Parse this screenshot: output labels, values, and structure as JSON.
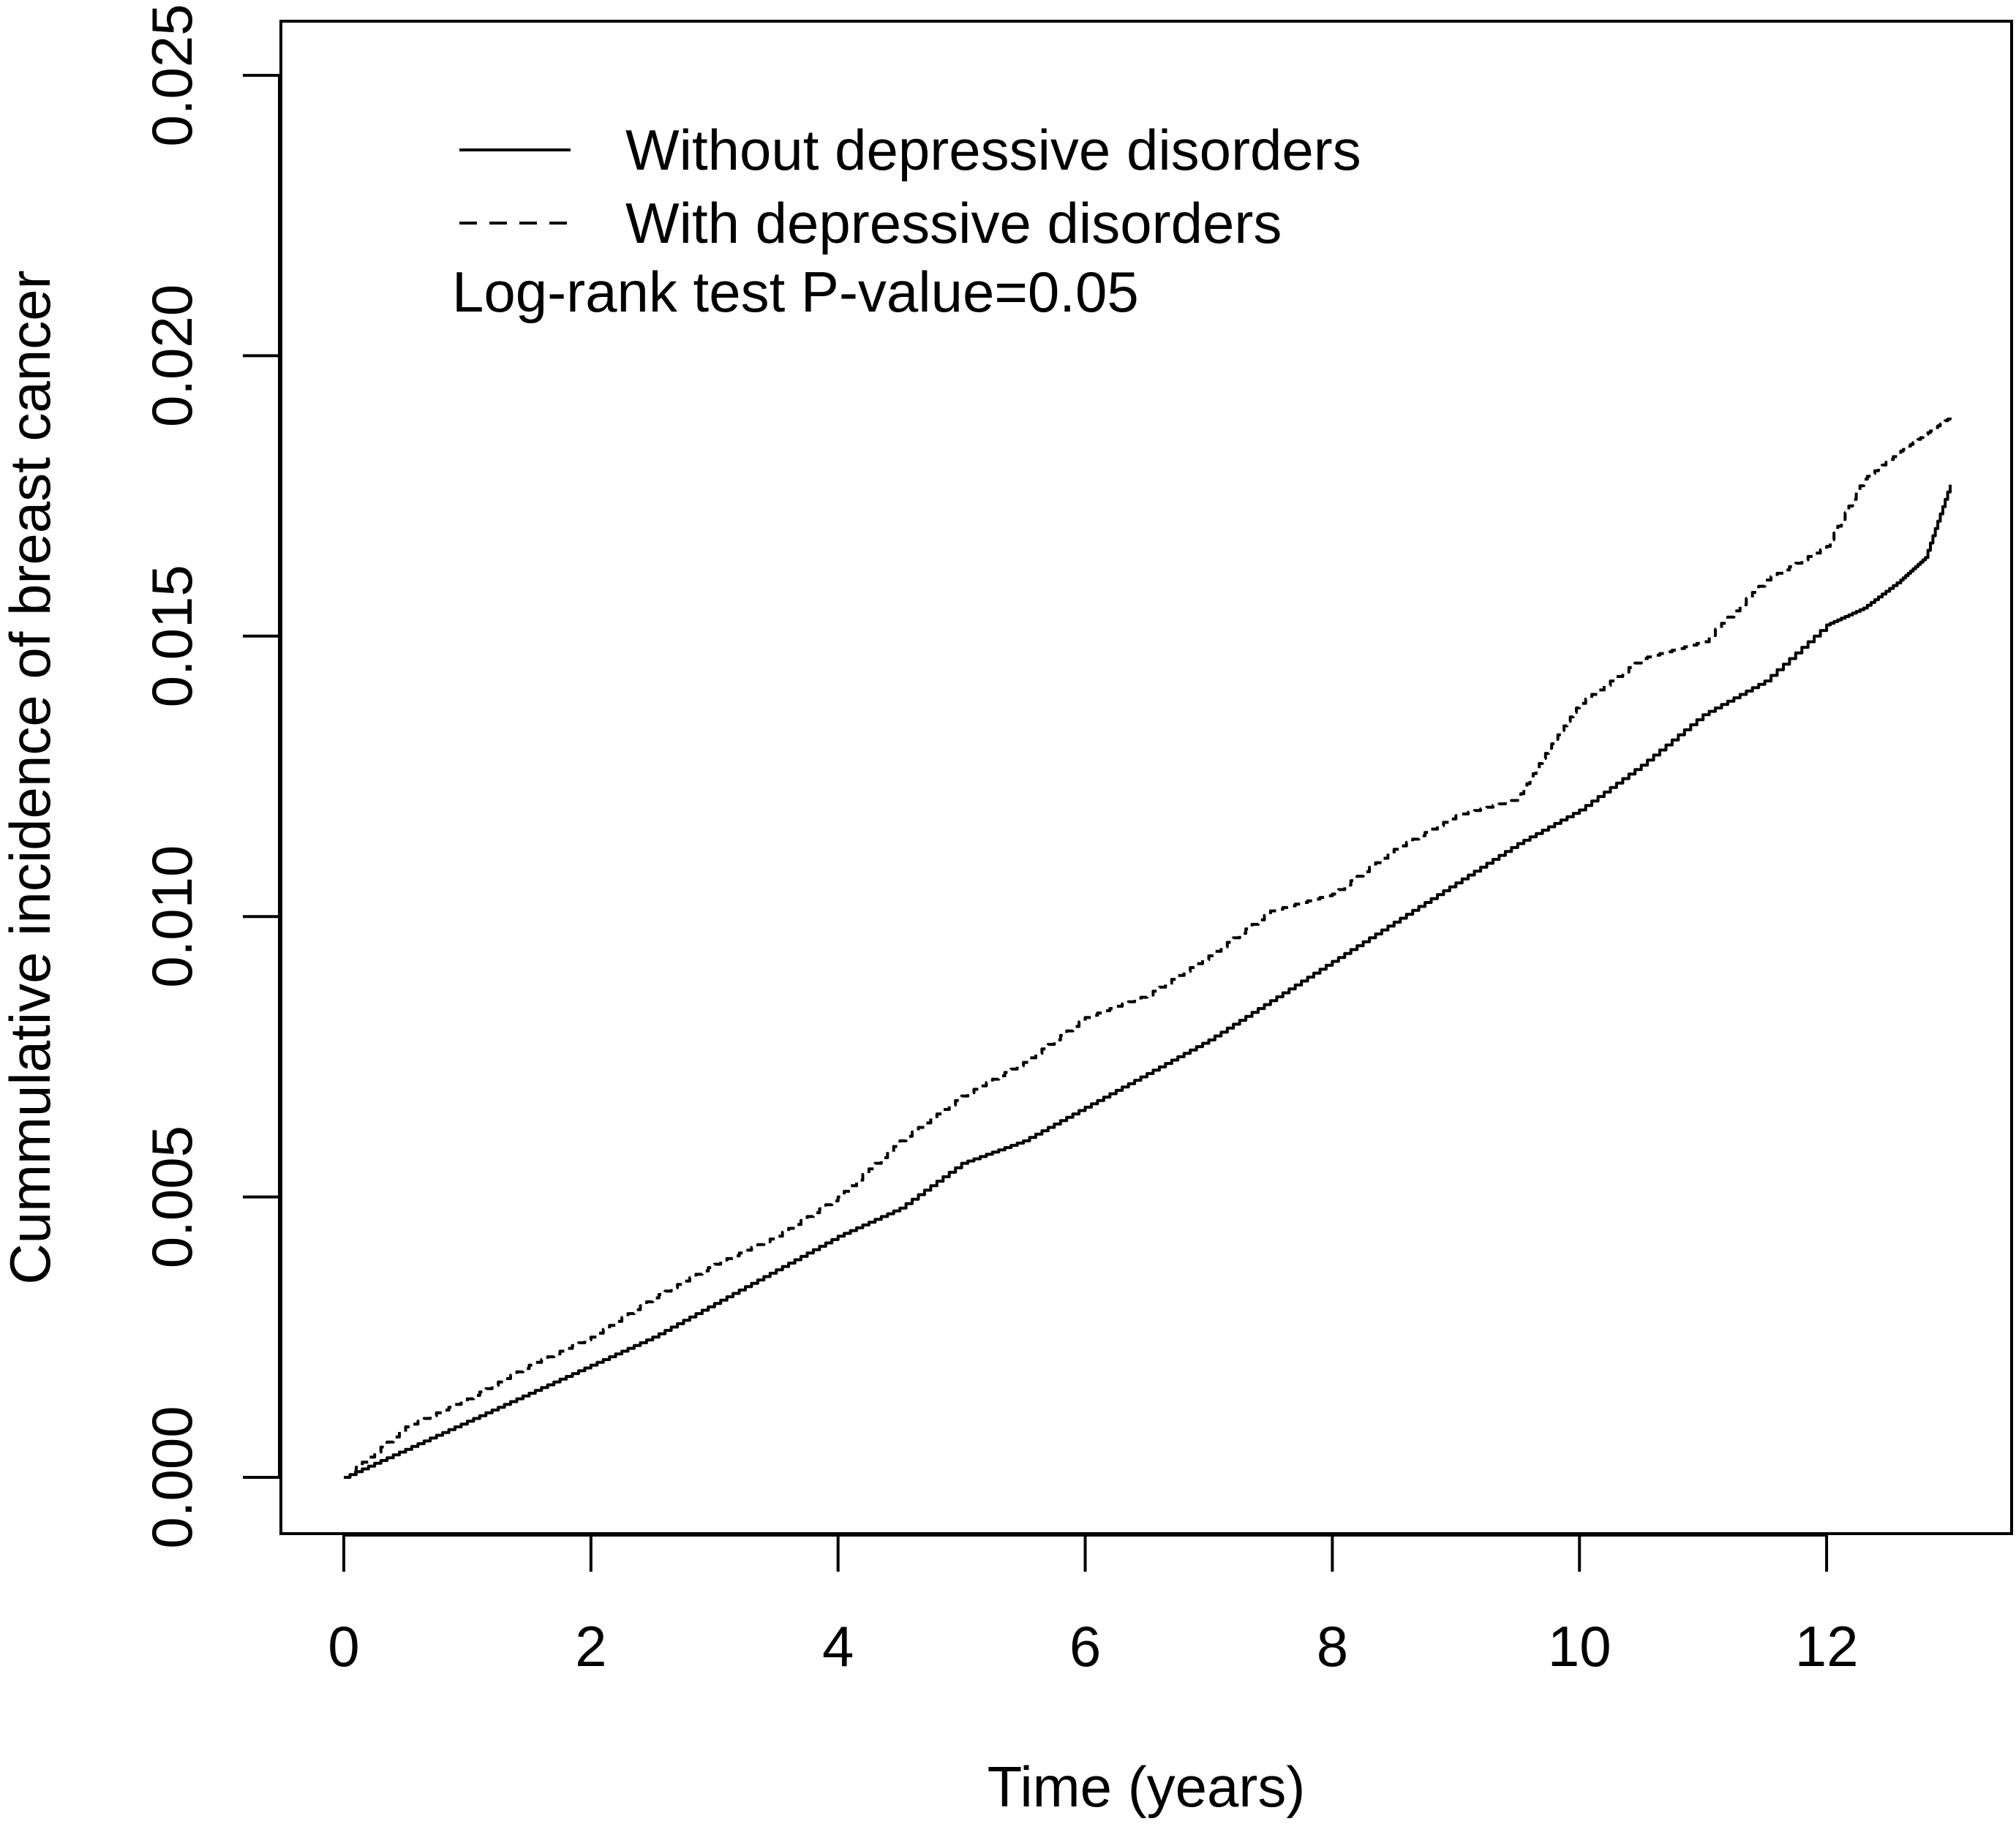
{
  "chart_data": {
    "type": "line",
    "title": "",
    "xlabel": "Time (years)",
    "ylabel": "Cummulative incidence of breast cancer",
    "xlim": [
      0,
      13
    ],
    "ylim": [
      0,
      0.025
    ],
    "x_ticks": [
      0,
      2,
      4,
      6,
      8,
      10,
      12
    ],
    "x_tick_labels": [
      "0",
      "2",
      "4",
      "6",
      "8",
      "10",
      "12"
    ],
    "y_ticks": [
      0,
      0.005,
      0.01,
      0.015,
      0.02,
      0.025
    ],
    "y_tick_labels": [
      "0.000",
      "0.005",
      "0.010",
      "0.015",
      "0.020",
      "0.025"
    ],
    "grid": false,
    "legend_position": "top-left",
    "annotation": "Log-rank test P-value=0.05",
    "series": [
      {
        "name": "Without depressive disorders",
        "line_style": "solid",
        "color": "#000000",
        "x": [
          0,
          0.5,
          1,
          1.5,
          2,
          2.5,
          3,
          3.5,
          4,
          4.5,
          5,
          5.5,
          6,
          6.5,
          7,
          7.5,
          8,
          8.5,
          9,
          9.5,
          10,
          10.5,
          11,
          11.5,
          12,
          12.3,
          12.6,
          12.8,
          13
        ],
        "y": [
          0,
          0.0005,
          0.001,
          0.0015,
          0.002,
          0.0025,
          0.0031,
          0.0037,
          0.0043,
          0.0048,
          0.0056,
          0.006,
          0.0066,
          0.0072,
          0.0078,
          0.0085,
          0.0092,
          0.0099,
          0.0106,
          0.0113,
          0.0119,
          0.0127,
          0.0136,
          0.0142,
          0.0152,
          0.0155,
          0.016,
          0.0164,
          0.0177
        ]
      },
      {
        "name": "With depressive disorders",
        "line_style": "dashed",
        "color": "#000000",
        "x": [
          0,
          0.5,
          1,
          1.5,
          2,
          2.5,
          3,
          3.5,
          4,
          4.5,
          5,
          5.5,
          6,
          6.5,
          7,
          7.5,
          8,
          8.5,
          9,
          9.5,
          9.75,
          10,
          10.5,
          11,
          11.5,
          12,
          12.3,
          12.6,
          12.8,
          13
        ],
        "y": [
          0,
          0.0009,
          0.0014,
          0.002,
          0.0025,
          0.0032,
          0.0038,
          0.0043,
          0.005,
          0.006,
          0.0068,
          0.0074,
          0.0082,
          0.0086,
          0.0093,
          0.0101,
          0.0104,
          0.0112,
          0.0118,
          0.0121,
          0.013,
          0.0138,
          0.0146,
          0.0149,
          0.016,
          0.0166,
          0.0178,
          0.0183,
          0.0186,
          0.0189
        ]
      }
    ]
  }
}
